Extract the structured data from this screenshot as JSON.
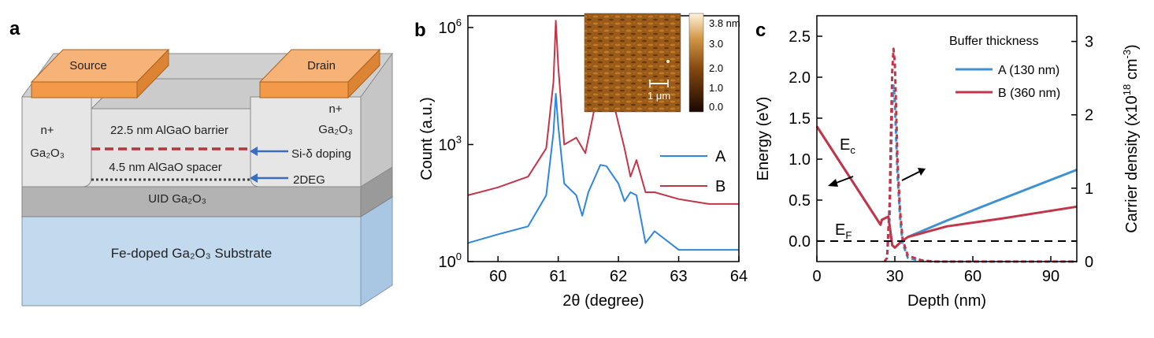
{
  "panel_a": {
    "label": "a",
    "source": "Source",
    "drain": "Drain",
    "nplus_left": "n+",
    "ga2o3_left": "Ga₂O₃",
    "nplus_right": "n+",
    "ga2o3_right": "Ga₂O₃",
    "barrier": "22.5 nm AlGaO barrier",
    "spacer": "4.5 nm AlGaO spacer",
    "si_doping": "Si-δ doping",
    "twodeg": "2DEG",
    "uid": "UID Ga₂O₃",
    "substrate": "Fe-doped Ga₂O₃ Substrate",
    "colors": {
      "contact": "#f39a4a",
      "barrier": "#e3e3e3",
      "uid": "#b3b3b3",
      "substrate": "#c2d9ee",
      "doping": "#b03838",
      "twodeg": "#404040",
      "arrow": "#3a6cc0"
    }
  },
  "panel_b": {
    "label": "b",
    "inset_scale_labels": [
      "3.8 nm",
      "3.0",
      "2.0",
      "1.0",
      "0.0"
    ],
    "inset_scalebar": "1 μm"
  },
  "panel_c": {
    "label": "c",
    "legend_title": "Buffer thickness",
    "ec_label": "E",
    "ec_sub": "c",
    "ef_label": "E",
    "ef_sub": "F"
  },
  "chart_data": [
    {
      "type": "line",
      "xlabel": "2θ (degree)",
      "ylabel": "Count (a.u.)",
      "xlim": [
        59.5,
        64
      ],
      "ylim": [
        1,
        2000000
      ],
      "y_scale": "log",
      "x_ticks": [
        60,
        61,
        62,
        63,
        64
      ],
      "y_ticks": [
        {
          "v": 1,
          "base": "10",
          "exp": "0"
        },
        {
          "v": 1000,
          "base": "10",
          "exp": "3"
        },
        {
          "v": 1000000,
          "base": "10",
          "exp": "6"
        }
      ],
      "legend_position": "right",
      "series": [
        {
          "name": "A",
          "color": "#2f86dd",
          "x": [
            59.5,
            60.0,
            60.5,
            60.8,
            60.92,
            60.96,
            61.0,
            61.1,
            61.3,
            61.4,
            61.5,
            61.7,
            61.8,
            62.0,
            62.1,
            62.2,
            62.3,
            62.45,
            62.6,
            63.0,
            63.5,
            64.0
          ],
          "y": [
            3,
            5,
            8,
            50,
            2000,
            20000,
            3000,
            100,
            50,
            15,
            60,
            300,
            280,
            100,
            35,
            60,
            50,
            3,
            6,
            2,
            2,
            2
          ]
        },
        {
          "name": "B",
          "color": "#c2364a",
          "x": [
            59.5,
            60.0,
            60.5,
            60.8,
            60.92,
            60.96,
            61.0,
            61.1,
            61.3,
            61.45,
            61.6,
            61.75,
            61.9,
            62.1,
            62.2,
            62.3,
            62.45,
            62.6,
            63.0,
            63.5,
            64.0
          ],
          "y": [
            50,
            80,
            150,
            800,
            40000,
            1500000,
            100000,
            1000,
            1500,
            600,
            8000,
            40000,
            15000,
            800,
            150,
            400,
            60,
            60,
            40,
            30,
            30
          ]
        }
      ]
    },
    {
      "type": "line",
      "xlabel": "Depth (nm)",
      "ylabel": "Energy (eV)",
      "y2label": "Carrier density (x10",
      "y2label_exp": "18",
      "y2label_unit": " cm",
      "y2label_unit_exp": "-3",
      "y2label_close": ")",
      "xlim": [
        0,
        100
      ],
      "ylim": [
        -0.25,
        2.75
      ],
      "y2lim": [
        0,
        3.35
      ],
      "x_ticks": [
        0,
        30,
        60,
        90
      ],
      "y_ticks": [
        "0.0",
        "0.5",
        "1.0",
        "1.5",
        "2.0",
        "2.5"
      ],
      "y2_ticks": [
        "0",
        "1",
        "2",
        "3"
      ],
      "legend_position": "top-right",
      "series": [
        {
          "name": "A (130 nm)",
          "color": "#3f91cf",
          "kind": "energy",
          "x": [
            0,
            24.5,
            25,
            27.5,
            29,
            30,
            32,
            35,
            50,
            70,
            100
          ],
          "y": [
            1.4,
            0.2,
            0.26,
            0.3,
            -0.05,
            -0.08,
            -0.02,
            0.05,
            0.25,
            0.5,
            0.87
          ]
        },
        {
          "name": "B (360 nm)",
          "color": "#c2364a",
          "kind": "energy",
          "x": [
            0,
            24.5,
            25,
            27.5,
            29,
            30,
            32,
            35,
            50,
            70,
            100
          ],
          "y": [
            1.4,
            0.2,
            0.26,
            0.3,
            -0.05,
            -0.08,
            -0.02,
            0.05,
            0.18,
            0.27,
            0.42
          ]
        },
        {
          "name": "A (130 nm)",
          "color": "#3f91cf",
          "kind": "density",
          "dashed": true,
          "x": [
            26,
            27,
            28,
            28.5,
            29,
            29.5,
            30,
            30.5,
            31,
            32,
            33,
            35,
            40,
            45,
            60,
            100
          ],
          "y": [
            0,
            0.05,
            0.6,
            1.4,
            2.1,
            2.4,
            2.2,
            1.7,
            1.2,
            0.6,
            0.25,
            0.05,
            0.01,
            0,
            0,
            0
          ]
        },
        {
          "name": "B (360 nm)",
          "color": "#c2364a",
          "kind": "density",
          "dashed": true,
          "x": [
            26,
            27,
            28,
            28.5,
            29,
            29.5,
            30,
            30.5,
            31,
            32,
            33,
            35,
            40,
            45,
            60,
            100
          ],
          "y": [
            0,
            0.05,
            0.8,
            1.8,
            2.6,
            2.9,
            2.7,
            2.1,
            1.4,
            0.7,
            0.3,
            0.08,
            0.02,
            0,
            0,
            0
          ]
        },
        {
          "name": "",
          "color": "#000000",
          "kind": "fermi",
          "dashed": true,
          "x": [
            0,
            100
          ],
          "y": [
            0,
            0
          ]
        }
      ]
    }
  ]
}
